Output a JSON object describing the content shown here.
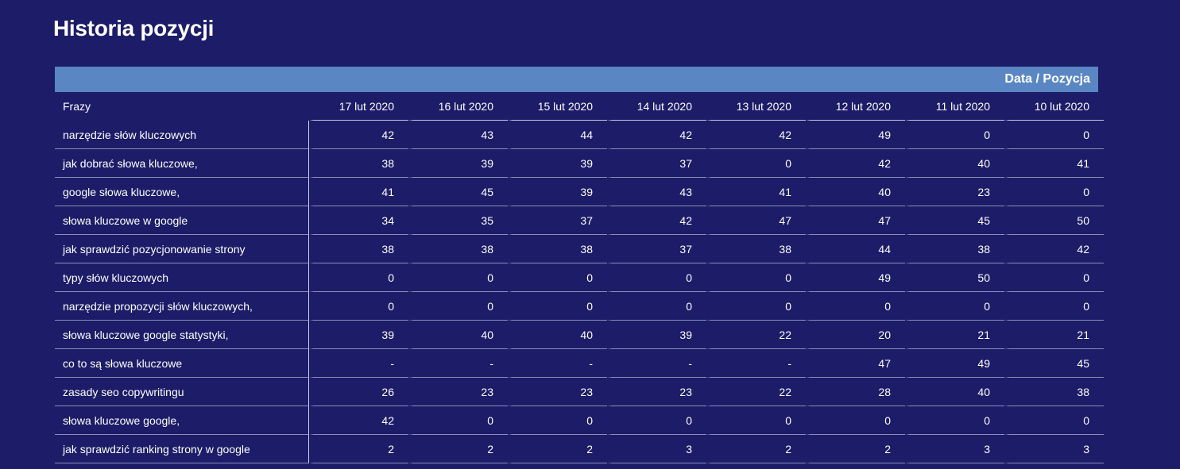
{
  "page": {
    "title": "Historia pozycji"
  },
  "table": {
    "band_label": "Data / Pozycja",
    "phrase_header": "Frazy",
    "dates": [
      "17 lut 2020",
      "16 lut 2020",
      "15 lut 2020",
      "14 lut 2020",
      "13 lut 2020",
      "12 lut 2020",
      "11 lut 2020",
      "10 lut 2020"
    ],
    "rows": [
      {
        "phrase": "narzędzie słów kluczowych",
        "values": [
          "42",
          "43",
          "44",
          "42",
          "42",
          "49",
          "0",
          "0"
        ]
      },
      {
        "phrase": "jak dobrać słowa kluczowe,",
        "values": [
          "38",
          "39",
          "39",
          "37",
          "0",
          "42",
          "40",
          "41"
        ]
      },
      {
        "phrase": "google słowa kluczowe,",
        "values": [
          "41",
          "45",
          "39",
          "43",
          "41",
          "40",
          "23",
          "0"
        ]
      },
      {
        "phrase": "słowa kluczowe w google",
        "values": [
          "34",
          "35",
          "37",
          "42",
          "47",
          "47",
          "45",
          "50"
        ]
      },
      {
        "phrase": "jak sprawdzić pozycjonowanie strony",
        "values": [
          "38",
          "38",
          "38",
          "37",
          "38",
          "44",
          "38",
          "42"
        ]
      },
      {
        "phrase": "typy słów kluczowych",
        "values": [
          "0",
          "0",
          "0",
          "0",
          "0",
          "49",
          "50",
          "0"
        ]
      },
      {
        "phrase": "narzędzie propozycji słów kluczowych,",
        "values": [
          "0",
          "0",
          "0",
          "0",
          "0",
          "0",
          "0",
          "0"
        ]
      },
      {
        "phrase": "słowa kluczowe google statystyki,",
        "values": [
          "39",
          "40",
          "40",
          "39",
          "22",
          "20",
          "21",
          "21"
        ]
      },
      {
        "phrase": "co to są słowa kluczowe",
        "values": [
          "-",
          "-",
          "-",
          "-",
          "-",
          "47",
          "49",
          "45"
        ]
      },
      {
        "phrase": "zasady seo copywritingu",
        "values": [
          "26",
          "23",
          "23",
          "23",
          "22",
          "28",
          "40",
          "38"
        ]
      },
      {
        "phrase": "słowa kluczowe google,",
        "values": [
          "42",
          "0",
          "0",
          "0",
          "0",
          "0",
          "0",
          "0"
        ]
      },
      {
        "phrase": "jak sprawdzić ranking strony w google",
        "values": [
          "2",
          "2",
          "2",
          "3",
          "2",
          "2",
          "3",
          "3"
        ]
      }
    ]
  },
  "colors": {
    "background": "#1c1c68",
    "band": "#5a87c4",
    "text": "#ffffff"
  }
}
